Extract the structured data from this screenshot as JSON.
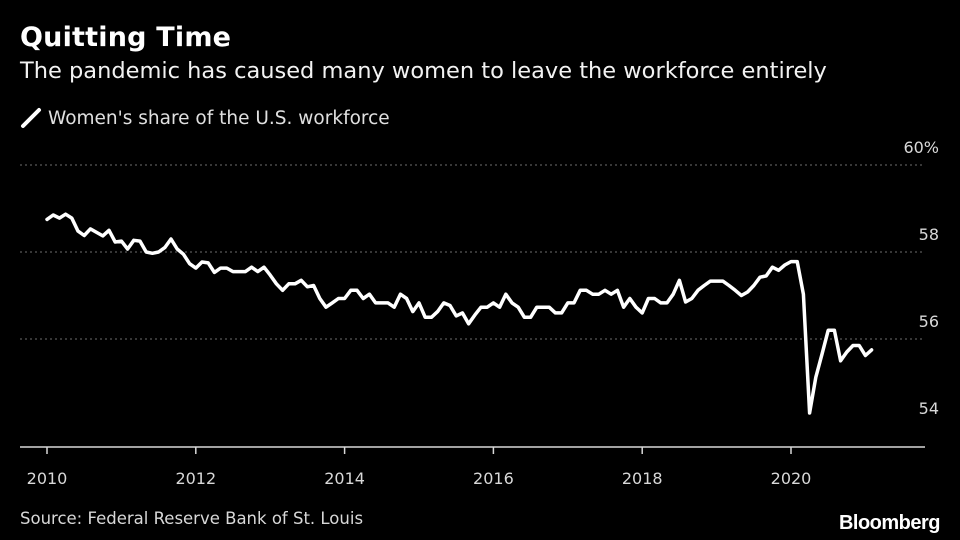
{
  "header": {
    "title": "Quitting Time",
    "subtitle": "The pandemic has caused many women to leave the workforce entirely"
  },
  "legend": {
    "label": "Women's share of the U.S. workforce"
  },
  "footer": {
    "source": "Source: Federal Reserve Bank of St. Louis",
    "brand": "Bloomberg"
  },
  "colors": {
    "background": "#000000",
    "line": "#ffffff",
    "grid": "#6e6e6e",
    "text": "#d8d8d8"
  },
  "chart_data": {
    "type": "line",
    "title": "Quitting Time",
    "subtitle": "The pandemic has caused many women to leave the workforce entirely",
    "xlabel": "",
    "ylabel": "",
    "xlim": [
      2010,
      2021.25
    ],
    "ylim": [
      54,
      60
    ],
    "y_ticks": [
      54,
      56,
      58,
      60
    ],
    "y_tick_labels": [
      "54",
      "56",
      "58",
      "60%"
    ],
    "x_ticks": [
      2010,
      2012,
      2014,
      2016,
      2018,
      2020
    ],
    "x_tick_labels": [
      "2010",
      "2012",
      "2014",
      "2016",
      "2018",
      "2020"
    ],
    "grid": "horizontal dotted",
    "legend_position": "top-left",
    "series": [
      {
        "name": "Women's share of the U.S. workforce",
        "x": [
          2010.0,
          2010.083,
          2010.167,
          2010.25,
          2010.333,
          2010.417,
          2010.5,
          2010.583,
          2010.667,
          2010.75,
          2010.833,
          2010.917,
          2011.0,
          2011.083,
          2011.167,
          2011.25,
          2011.333,
          2011.417,
          2011.5,
          2011.583,
          2011.667,
          2011.75,
          2011.833,
          2011.917,
          2012.0,
          2012.083,
          2012.167,
          2012.25,
          2012.333,
          2012.417,
          2012.5,
          2012.583,
          2012.667,
          2012.75,
          2012.833,
          2012.917,
          2013.0,
          2013.083,
          2013.167,
          2013.25,
          2013.333,
          2013.417,
          2013.5,
          2013.583,
          2013.667,
          2013.75,
          2013.833,
          2013.917,
          2014.0,
          2014.083,
          2014.167,
          2014.25,
          2014.333,
          2014.417,
          2014.5,
          2014.583,
          2014.667,
          2014.75,
          2014.833,
          2014.917,
          2015.0,
          2015.083,
          2015.167,
          2015.25,
          2015.333,
          2015.417,
          2015.5,
          2015.583,
          2015.667,
          2015.75,
          2015.833,
          2015.917,
          2016.0,
          2016.083,
          2016.167,
          2016.25,
          2016.333,
          2016.417,
          2016.5,
          2016.583,
          2016.667,
          2016.75,
          2016.833,
          2016.917,
          2017.0,
          2017.083,
          2017.167,
          2017.25,
          2017.333,
          2017.417,
          2017.5,
          2017.583,
          2017.667,
          2017.75,
          2017.833,
          2017.917,
          2018.0,
          2018.083,
          2018.167,
          2018.25,
          2018.333,
          2018.417,
          2018.5,
          2018.583,
          2018.667,
          2018.75,
          2018.833,
          2018.917,
          2019.0,
          2019.083,
          2019.167,
          2019.25,
          2019.333,
          2019.417,
          2019.5,
          2019.583,
          2019.667,
          2019.75,
          2019.833,
          2019.917,
          2020.0,
          2020.083,
          2020.167,
          2020.25,
          2020.333,
          2020.417,
          2020.5,
          2020.583,
          2020.667,
          2020.75,
          2020.833,
          2020.917,
          2021.0,
          2021.083
        ],
        "values": [
          58.75,
          58.85,
          58.78,
          58.87,
          58.78,
          58.48,
          58.38,
          58.53,
          58.45,
          58.37,
          58.5,
          58.23,
          58.25,
          58.07,
          58.27,
          58.25,
          58.0,
          57.97,
          58.0,
          58.1,
          58.3,
          58.07,
          57.95,
          57.73,
          57.63,
          57.77,
          57.75,
          57.53,
          57.63,
          57.63,
          57.55,
          57.55,
          57.55,
          57.65,
          57.55,
          57.65,
          57.47,
          57.27,
          57.12,
          57.27,
          57.27,
          57.35,
          57.2,
          57.23,
          56.93,
          56.73,
          56.83,
          56.93,
          56.93,
          57.12,
          57.12,
          56.93,
          57.03,
          56.83,
          56.83,
          56.83,
          56.73,
          57.03,
          56.93,
          56.63,
          56.83,
          56.5,
          56.5,
          56.63,
          56.83,
          56.77,
          56.53,
          56.6,
          56.35,
          56.55,
          56.73,
          56.73,
          56.83,
          56.73,
          57.03,
          56.83,
          56.73,
          56.5,
          56.5,
          56.73,
          56.73,
          56.73,
          56.6,
          56.6,
          56.83,
          56.83,
          57.12,
          57.12,
          57.03,
          57.03,
          57.12,
          57.03,
          57.12,
          56.73,
          56.93,
          56.73,
          56.6,
          56.93,
          56.93,
          56.83,
          56.83,
          57.03,
          57.35,
          56.85,
          56.93,
          57.12,
          57.23,
          57.33,
          57.33,
          57.33,
          57.23,
          57.12,
          57.0,
          57.08,
          57.23,
          57.42,
          57.45,
          57.65,
          57.58,
          57.7,
          57.78,
          57.78,
          57.03,
          54.3,
          55.12,
          55.65,
          56.2,
          56.2,
          55.5,
          55.7,
          55.85,
          55.85,
          55.62,
          55.75
        ]
      }
    ]
  }
}
